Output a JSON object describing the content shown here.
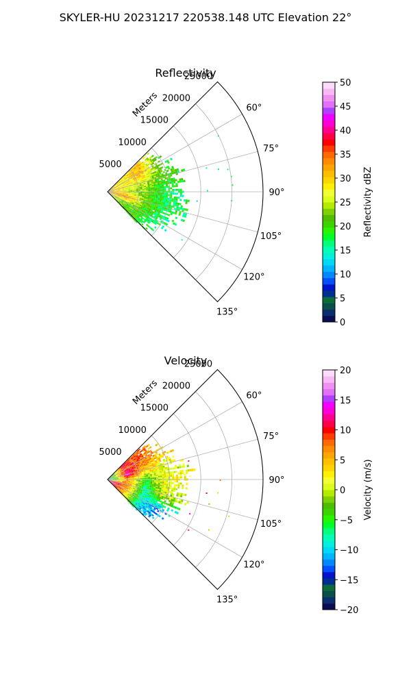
{
  "figure": {
    "suptitle": "SKYLER-HU  20231217  220538.148 UTC Elevation 22°"
  },
  "chart_data": [
    {
      "type": "heatmap",
      "subtype": "polar-sector",
      "title": "Reflectivity",
      "radial_label": "Meters",
      "radial_ticks": [
        5000,
        10000,
        15000,
        20000,
        25000
      ],
      "radial_tick_labels": [
        "5000",
        "10000",
        "15000",
        "20000",
        "25000"
      ],
      "rlim": [
        0,
        25000
      ],
      "angle_ticks": [
        60,
        75,
        90,
        105,
        120,
        135
      ],
      "angle_tick_labels": [
        "60°",
        "75°",
        "90°",
        "105°",
        "120°",
        "135°"
      ],
      "azimuth_range_deg": [
        45,
        135
      ],
      "grid": true,
      "colorbar": {
        "label": "Reflectivity dBZ",
        "range": [
          0,
          50
        ],
        "ticks": [
          0,
          5,
          10,
          15,
          20,
          25,
          30,
          35,
          40,
          45,
          50
        ],
        "tick_labels": [
          "0",
          "5",
          "10",
          "15",
          "20",
          "25",
          "30",
          "35",
          "40",
          "45",
          "50"
        ],
        "colors": [
          "#0c0c52",
          "#0a2d6e",
          "#0b4f4a",
          "#0a6b3b",
          "#00308f",
          "#0015c8",
          "#0050ff",
          "#0089ff",
          "#00b5ff",
          "#00d9f6",
          "#00f2da",
          "#00ffb4",
          "#00ff7a",
          "#00ff28",
          "#2bf400",
          "#3cd400",
          "#4fbe00",
          "#7fd000",
          "#b4ec00",
          "#daff1a",
          "#f4ff33",
          "#fff000",
          "#ffd500",
          "#ffbe00",
          "#ffa500",
          "#ff8c00",
          "#ff6a00",
          "#ff3c00",
          "#ff0000",
          "#ff0048",
          "#ff0090",
          "#ff00d4",
          "#f000ff",
          "#b040ff",
          "#e070f5",
          "#f090f0",
          "#f8b8f4",
          "#fcdcf8"
        ]
      },
      "echo_region": {
        "azimuth_deg": [
          45,
          136
        ],
        "range_m": [
          0,
          12500
        ],
        "values": [
          {
            "azimuth": 60,
            "ranges_m": [
              0,
              3000,
              6000,
              9000,
              11000
            ],
            "values": [
              30,
              28,
              32,
              22,
              18
            ]
          },
          {
            "azimuth": 75,
            "ranges_m": [
              0,
              3000,
              6000,
              9000
            ],
            "values": [
              32,
              27,
              25,
              20
            ]
          },
          {
            "azimuth": 90,
            "ranges_m": [
              0,
              3000,
              6000,
              9000
            ],
            "values": [
              33,
              26,
              22,
              17
            ]
          },
          {
            "azimuth": 105,
            "ranges_m": [
              0,
              3000,
              6000,
              9000
            ],
            "values": [
              31,
              35,
              22,
              18
            ]
          },
          {
            "azimuth": 120,
            "ranges_m": [
              0,
              3000,
              6000,
              9000,
              11000
            ],
            "values": [
              26,
              22,
              20,
              17,
              15
            ]
          }
        ]
      }
    },
    {
      "type": "heatmap",
      "subtype": "polar-sector",
      "title": "Velocity",
      "radial_label": "Meters",
      "radial_ticks": [
        5000,
        10000,
        15000,
        20000,
        25000
      ],
      "radial_tick_labels": [
        "5000",
        "10000",
        "15000",
        "20000",
        "25000"
      ],
      "rlim": [
        0,
        25000
      ],
      "angle_ticks": [
        60,
        75,
        90,
        105,
        120,
        135
      ],
      "angle_tick_labels": [
        "60°",
        "75°",
        "90°",
        "105°",
        "120°",
        "135°"
      ],
      "azimuth_range_deg": [
        45,
        135
      ],
      "grid": true,
      "colorbar": {
        "label": "Velocity (m/s)",
        "range": [
          -20,
          20
        ],
        "ticks": [
          -20,
          -15,
          -10,
          -5,
          0,
          5,
          10,
          15,
          20
        ],
        "tick_labels": [
          "−20",
          "−15",
          "−10",
          "−5",
          "0",
          "5",
          "10",
          "15",
          "20"
        ],
        "colors": [
          "#0c0c52",
          "#0a2d6e",
          "#0b4f4a",
          "#0a6b3b",
          "#00308f",
          "#0015c8",
          "#0050ff",
          "#0089ff",
          "#00b5ff",
          "#00d9f6",
          "#00f2da",
          "#00ffb4",
          "#00ff7a",
          "#00ff28",
          "#2bf400",
          "#3cd400",
          "#4fbe00",
          "#7fd000",
          "#b4ec00",
          "#daff1a",
          "#f4ff33",
          "#fff000",
          "#ffd500",
          "#ffbe00",
          "#ffa500",
          "#ff8c00",
          "#ff6a00",
          "#ff3c00",
          "#ff0000",
          "#ff0048",
          "#ff0090",
          "#ff00d4",
          "#f000ff",
          "#b040ff",
          "#e070f5",
          "#f090f0",
          "#f8b8f4",
          "#fcdcf8"
        ]
      },
      "echo_region": {
        "azimuth_deg": [
          45,
          136
        ],
        "range_m": [
          0,
          12500
        ],
        "values": [
          {
            "azimuth": 60,
            "ranges_m": [
              0,
              3000,
              6000,
              9000
            ],
            "values": [
              -8,
              10,
              8,
              5
            ]
          },
          {
            "azimuth": 75,
            "ranges_m": [
              0,
              3000,
              6000,
              9000
            ],
            "values": [
              -10,
              14,
              4,
              1
            ]
          },
          {
            "azimuth": 90,
            "ranges_m": [
              0,
              3000,
              6000,
              9000
            ],
            "values": [
              -12,
              6,
              -5,
              2
            ]
          },
          {
            "azimuth": 105,
            "ranges_m": [
              0,
              3000,
              6000,
              9000
            ],
            "values": [
              14,
              8,
              -8,
              0
            ]
          },
          {
            "azimuth": 120,
            "ranges_m": [
              0,
              3000,
              6000,
              9000,
              11000
            ],
            "values": [
              12,
              6,
              -9,
              -12,
              -11
            ]
          }
        ]
      }
    }
  ]
}
